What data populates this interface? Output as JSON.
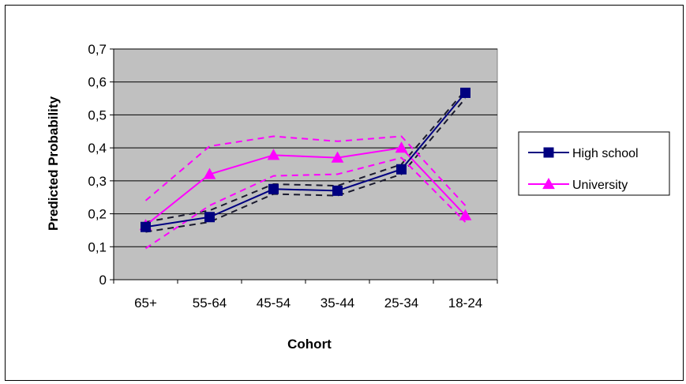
{
  "chart_data": {
    "type": "line",
    "title": "",
    "xlabel": "Cohort",
    "ylabel": "Predicted Probability",
    "categories": [
      "65+",
      "55-64",
      "45-54",
      "35-44",
      "25-34",
      "18-24"
    ],
    "ylim": [
      0,
      0.7
    ],
    "yticks": [
      "0",
      "0,1",
      "0,2",
      "0,3",
      "0,4",
      "0,5",
      "0,6",
      "0,7"
    ],
    "grid": true,
    "plot_background": "#c0c0c0",
    "legend_position": "right",
    "series": [
      {
        "name": "High school",
        "marker": "square",
        "color": "#000080",
        "values": [
          0.16,
          0.19,
          0.275,
          0.27,
          0.335,
          0.567
        ],
        "ci_lower": [
          0.145,
          0.175,
          0.26,
          0.255,
          0.32,
          0.55
        ],
        "ci_upper": [
          0.175,
          0.21,
          0.29,
          0.285,
          0.35,
          0.575
        ]
      },
      {
        "name": "University",
        "marker": "triangle",
        "color": "#ff00ff",
        "values": [
          0.165,
          0.32,
          0.378,
          0.37,
          0.4,
          0.195
        ],
        "ci_lower": [
          0.095,
          0.225,
          0.315,
          0.32,
          0.37,
          0.175
        ],
        "ci_upper": [
          0.24,
          0.405,
          0.435,
          0.42,
          0.435,
          0.225
        ]
      }
    ]
  }
}
